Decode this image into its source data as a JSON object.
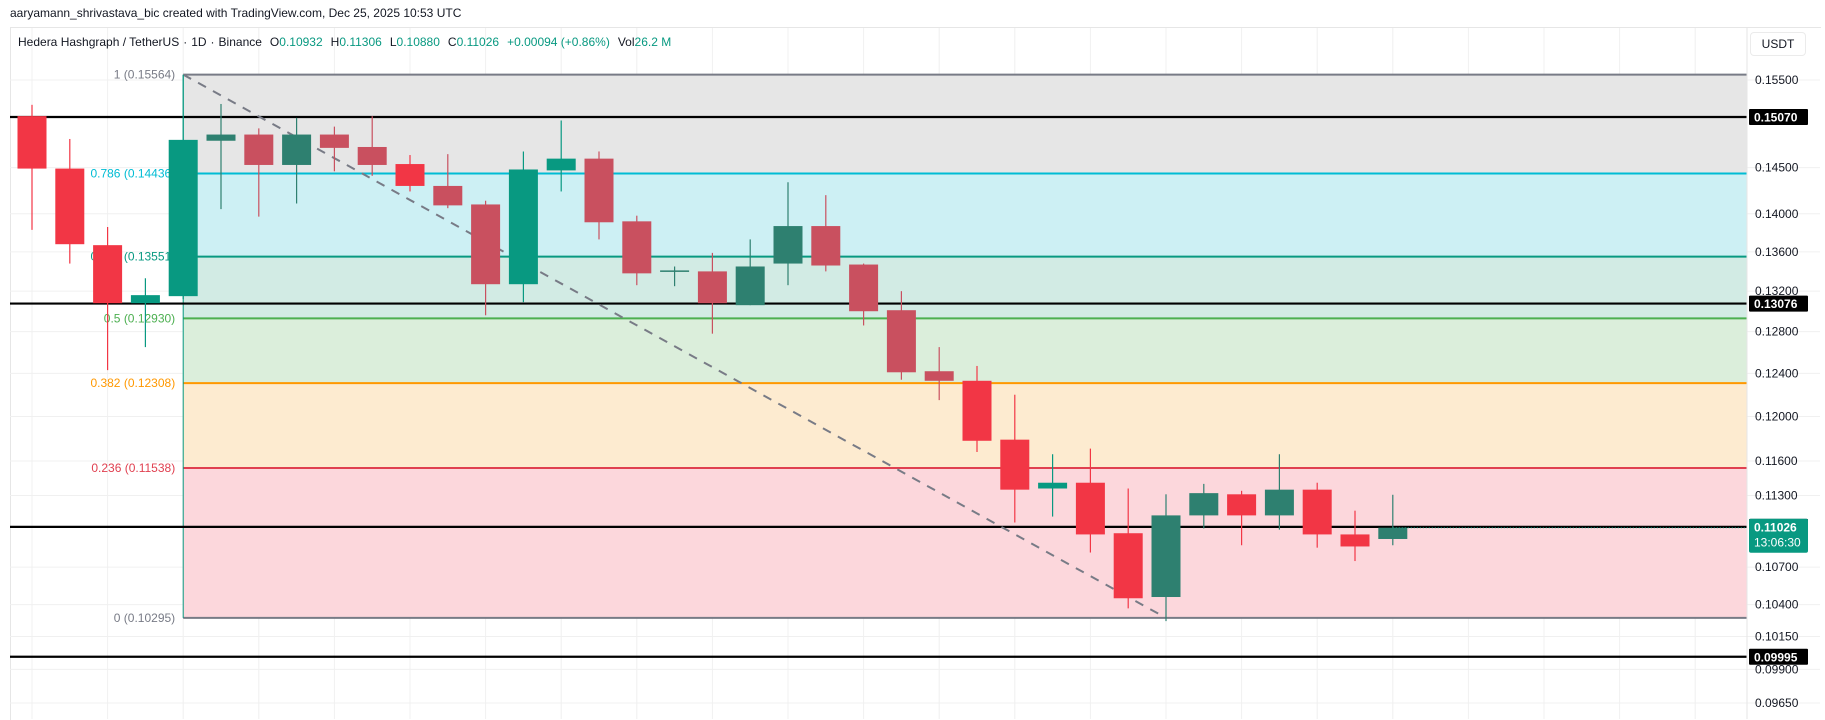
{
  "header": {
    "credit": "aaryamann_shrivastava_bic created with TradingView.com, Dec 25, 2025 10:53 UTC"
  },
  "legend": {
    "symbol": "Hedera Hashgraph / TetherUS",
    "interval": "1D",
    "exchange": "Binance",
    "separator": "·",
    "open_label": "O",
    "open": "0.10932",
    "high_label": "H",
    "high": "0.11306",
    "low_label": "L",
    "low": "0.10880",
    "close_label": "C",
    "close": "0.11026",
    "change": "+0.00094 (+0.86%)",
    "vol_label": "Vol",
    "vol": "26.2 M"
  },
  "axis": {
    "currency": "USDT",
    "ticks": [
      "0.15500",
      "0.14500",
      "0.14000",
      "0.13600",
      "0.13200",
      "0.12800",
      "0.12400",
      "0.12000",
      "0.11600",
      "0.11300",
      "0.10700",
      "0.10400",
      "0.10150",
      "0.09900",
      "0.09650"
    ],
    "tags": [
      {
        "price": "0.15070",
        "color": "#000000"
      },
      {
        "price": "0.13076",
        "color": "#000000"
      },
      {
        "price": "0.11033",
        "color": "#000000"
      },
      {
        "price": "0.09995",
        "color": "#000000"
      }
    ],
    "last_price_tag": {
      "price": "0.11026",
      "countdown": "13:06:30",
      "color": "#089981"
    }
  },
  "colors": {
    "up": "#089981",
    "up_muted": "#2e8070",
    "down": "#f23645",
    "down_muted": "#c9505f",
    "grid": "#f0f0f0",
    "hline": "#000000",
    "trend": "#787b86"
  },
  "chart_data": {
    "type": "candlestick",
    "title": "Hedera Hashgraph / TetherUS · 1D · Binance",
    "ylabel": "USDT",
    "yscale": "log",
    "ylim": [
      0.0955,
      0.1575
    ],
    "candles": [
      {
        "o": 0.1508,
        "h": 0.1521,
        "l": 0.1383,
        "c": 0.1449
      },
      {
        "o": 0.1449,
        "h": 0.1482,
        "l": 0.1348,
        "c": 0.1368
      },
      {
        "o": 0.1367,
        "h": 0.1386,
        "l": 0.1243,
        "c": 0.1308
      },
      {
        "o": 0.1308,
        "h": 0.1333,
        "l": 0.1265,
        "c": 0.1316
      },
      {
        "o": 0.1315,
        "h": 0.1556,
        "l": 0.1312,
        "c": 0.1481
      },
      {
        "o": 0.148,
        "h": 0.1522,
        "l": 0.1405,
        "c": 0.1487
      },
      {
        "o": 0.1487,
        "h": 0.1494,
        "l": 0.1397,
        "c": 0.1453
      },
      {
        "o": 0.1453,
        "h": 0.1506,
        "l": 0.1411,
        "c": 0.1487
      },
      {
        "o": 0.1487,
        "h": 0.1496,
        "l": 0.1446,
        "c": 0.1472
      },
      {
        "o": 0.1473,
        "h": 0.1508,
        "l": 0.1441,
        "c": 0.1453
      },
      {
        "o": 0.1454,
        "h": 0.1464,
        "l": 0.1424,
        "c": 0.143
      },
      {
        "o": 0.143,
        "h": 0.1465,
        "l": 0.1406,
        "c": 0.1409
      },
      {
        "o": 0.141,
        "h": 0.1414,
        "l": 0.1296,
        "c": 0.1327
      },
      {
        "o": 0.1327,
        "h": 0.1468,
        "l": 0.1309,
        "c": 0.1448
      },
      {
        "o": 0.1447,
        "h": 0.1503,
        "l": 0.1424,
        "c": 0.146
      },
      {
        "o": 0.146,
        "h": 0.1468,
        "l": 0.1373,
        "c": 0.1391
      },
      {
        "o": 0.1392,
        "h": 0.1398,
        "l": 0.1326,
        "c": 0.1338
      },
      {
        "o": 0.134,
        "h": 0.1345,
        "l": 0.1325,
        "c": 0.1341
      },
      {
        "o": 0.134,
        "h": 0.1359,
        "l": 0.1278,
        "c": 0.1308
      },
      {
        "o": 0.1306,
        "h": 0.1373,
        "l": 0.1306,
        "c": 0.1345
      },
      {
        "o": 0.1348,
        "h": 0.1434,
        "l": 0.1326,
        "c": 0.1387
      },
      {
        "o": 0.1387,
        "h": 0.142,
        "l": 0.134,
        "c": 0.1346
      },
      {
        "o": 0.1347,
        "h": 0.1348,
        "l": 0.1286,
        "c": 0.13
      },
      {
        "o": 0.1301,
        "h": 0.132,
        "l": 0.1234,
        "c": 0.1241
      },
      {
        "o": 0.1242,
        "h": 0.1265,
        "l": 0.1215,
        "c": 0.1233
      },
      {
        "o": 0.1233,
        "h": 0.1247,
        "l": 0.1168,
        "c": 0.1178
      },
      {
        "o": 0.1179,
        "h": 0.122,
        "l": 0.1107,
        "c": 0.1135
      },
      {
        "o": 0.1136,
        "h": 0.1166,
        "l": 0.1112,
        "c": 0.1141
      },
      {
        "o": 0.1141,
        "h": 0.1171,
        "l": 0.1082,
        "c": 0.1097
      },
      {
        "o": 0.1098,
        "h": 0.1136,
        "l": 0.1037,
        "c": 0.1045
      },
      {
        "o": 0.1046,
        "h": 0.1131,
        "l": 0.1027,
        "c": 0.1113
      },
      {
        "o": 0.1113,
        "h": 0.114,
        "l": 0.1102,
        "c": 0.1132
      },
      {
        "o": 0.1131,
        "h": 0.1134,
        "l": 0.1088,
        "c": 0.1113
      },
      {
        "o": 0.1113,
        "h": 0.1166,
        "l": 0.1101,
        "c": 0.1135
      },
      {
        "o": 0.1135,
        "h": 0.1141,
        "l": 0.1086,
        "c": 0.1097
      },
      {
        "o": 0.1097,
        "h": 0.1117,
        "l": 0.1075,
        "c": 0.1087
      },
      {
        "o": 0.10932,
        "h": 0.11306,
        "l": 0.1088,
        "c": 0.11026
      }
    ],
    "fibonacci": {
      "start_candle": 4,
      "levels": [
        {
          "ratio": "1",
          "price": 0.15564,
          "label": "1 (0.15564)",
          "color": "#787b86",
          "fill": "#e6e6e6"
        },
        {
          "ratio": "0.786",
          "price": 0.14436,
          "label": "0.786 (0.14436)",
          "color": "#00bcd4",
          "fill": "#cdf0f4"
        },
        {
          "ratio": "0.618",
          "price": 0.13551,
          "label": "0.618 (0.13551)",
          "color": "#089981",
          "fill": "#d2ebe4"
        },
        {
          "ratio": "0.5",
          "price": 0.1293,
          "label": "0.5 (0.12930)",
          "color": "#4caf50",
          "fill": "#dbeedb"
        },
        {
          "ratio": "0.382",
          "price": 0.12308,
          "label": "0.382 (0.12308)",
          "color": "#ff9800",
          "fill": "#fdebd0"
        },
        {
          "ratio": "0.236",
          "price": 0.11538,
          "label": "0.236 (0.11538)",
          "color": "#e04050",
          "fill": "#fcd7dc"
        },
        {
          "ratio": "0",
          "price": 0.10295,
          "label": "0 (0.10295)",
          "color": "#787b86",
          "fill": null
        }
      ]
    },
    "horizontal_lines": [
      0.1507,
      0.13076,
      0.11033,
      0.09995
    ],
    "trendline": {
      "from": {
        "candle": 4,
        "price": 0.15564
      },
      "to": {
        "candle": 30,
        "price": 0.10295
      },
      "style": "dashed"
    }
  }
}
